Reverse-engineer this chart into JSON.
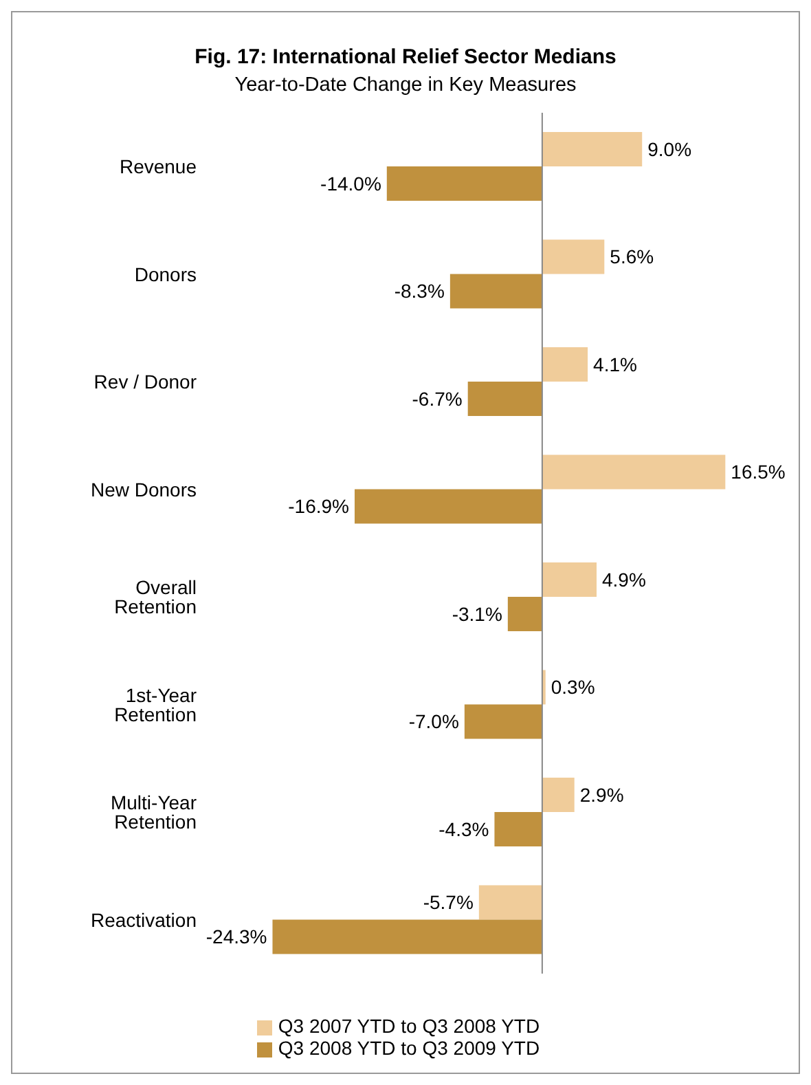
{
  "chart_data": {
    "type": "bar",
    "orientation": "horizontal",
    "title": "Fig. 17: International Relief Sector Medians",
    "subtitle": "Year-to-Date Change in Key Measures",
    "categories": [
      "Revenue",
      "Donors",
      "Rev / Donor",
      "New Donors",
      "Overall Retention",
      "1st-Year Retention",
      "Multi-Year Retention",
      "Reactivation"
    ],
    "series": [
      {
        "name": "Q3 2007 YTD to Q3 2008 YTD",
        "color": "#f0cc9a",
        "values": [
          9.0,
          5.6,
          4.1,
          16.5,
          4.9,
          0.3,
          2.9,
          -5.7
        ],
        "value_labels": [
          "9.0%",
          "5.6%",
          "4.1%",
          "16.5%",
          "4.9%",
          "0.3%",
          "2.9%",
          "-5.7%"
        ]
      },
      {
        "name": "Q3 2008 YTD to Q3 2009 YTD",
        "color": "#c0913e",
        "values": [
          -14.0,
          -8.3,
          -6.7,
          -16.9,
          -3.1,
          -7.0,
          -4.3,
          -24.3
        ],
        "value_labels": [
          "-14.0%",
          "-8.3%",
          "-6.7%",
          "-16.9%",
          "-3.1%",
          "-7.0%",
          "-4.3%",
          "-24.3%"
        ]
      }
    ],
    "tick_labels": "y",
    "grid": false,
    "legend": "bottom"
  }
}
